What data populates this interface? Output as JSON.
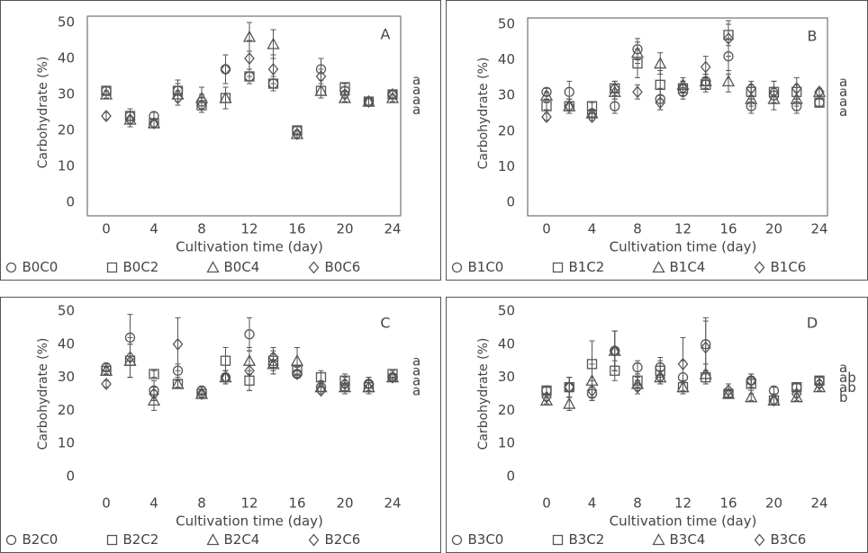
{
  "chart_data": [
    {
      "type": "scatter",
      "panel_label": "A",
      "ylabel": "Carbohydrate (%)",
      "xlabel": "Cultivation time (day)",
      "x": [
        0,
        2,
        4,
        6,
        8,
        10,
        12,
        14,
        16,
        18,
        20,
        22,
        24
      ],
      "xlim": [
        0,
        24
      ],
      "xticks": [
        0,
        4,
        8,
        12,
        16,
        20,
        24
      ],
      "ylim": [
        0,
        50
      ],
      "yticks": [
        0,
        10,
        20,
        30,
        40,
        50
      ],
      "frame": true,
      "sig_letters": [
        "a",
        "a",
        "a",
        "a"
      ],
      "series": [
        {
          "name": "B0C0",
          "marker": "circle",
          "color": "#555",
          "values": [
            31,
            24,
            24,
            31,
            28,
            37,
            35,
            33,
            20,
            37,
            31,
            28,
            30
          ],
          "errors": [
            1,
            2,
            1,
            3,
            2,
            4,
            2,
            2,
            1,
            3,
            1,
            1,
            1
          ]
        },
        {
          "name": "B0C2",
          "marker": "square",
          "color": "#555",
          "values": [
            31,
            24,
            22,
            31,
            27,
            29,
            35,
            33,
            20,
            31,
            32,
            28,
            30
          ],
          "errors": [
            1,
            2,
            1,
            3,
            2,
            3,
            2,
            2,
            1,
            2,
            1,
            1,
            1
          ]
        },
        {
          "name": "B0C4",
          "marker": "triangle",
          "color": "#555",
          "values": [
            30,
            23,
            22,
            30,
            29,
            29,
            46,
            44,
            19,
            31,
            29,
            28,
            29
          ],
          "errors": [
            1,
            2,
            1,
            3,
            3,
            3,
            4,
            4,
            1,
            2,
            1,
            1,
            1
          ]
        },
        {
          "name": "B0C6",
          "marker": "diamond",
          "color": "#555",
          "values": [
            24,
            23,
            22,
            29,
            27,
            37,
            40,
            37,
            19,
            35,
            30,
            28,
            30
          ],
          "errors": [
            1,
            2,
            1,
            2,
            2,
            4,
            5,
            4,
            1,
            2,
            1,
            1,
            1
          ]
        }
      ]
    },
    {
      "type": "scatter",
      "panel_label": "B",
      "ylabel": "Carbohydrate (%)",
      "xlabel": "Cultivation time (day)",
      "x": [
        0,
        2,
        4,
        6,
        8,
        10,
        12,
        14,
        16,
        18,
        20,
        22,
        24
      ],
      "xlim": [
        0,
        24
      ],
      "xticks": [
        0,
        4,
        8,
        12,
        16,
        20,
        24
      ],
      "ylim": [
        0,
        50
      ],
      "yticks": [
        0,
        10,
        20,
        30,
        40,
        50
      ],
      "frame": true,
      "sig_letters": [
        "a",
        "a",
        "a",
        "a"
      ],
      "series": [
        {
          "name": "B1C0",
          "marker": "circle",
          "color": "#555",
          "values": [
            31,
            31,
            25,
            27,
            43,
            29,
            31,
            34,
            41,
            27,
            30,
            27,
            28
          ],
          "errors": [
            1,
            3,
            1,
            2,
            3,
            3,
            2,
            2,
            5,
            2,
            2,
            2,
            1
          ]
        },
        {
          "name": "B1C2",
          "marker": "square",
          "color": "#555",
          "values": [
            27,
            27,
            27,
            32,
            39,
            33,
            32,
            33,
            47,
            31,
            31,
            31,
            28
          ],
          "errors": [
            1,
            2,
            1,
            2,
            4,
            4,
            2,
            2,
            3,
            2,
            3,
            2,
            1
          ]
        },
        {
          "name": "B1C4",
          "marker": "triangle",
          "color": "#555",
          "values": [
            30,
            27,
            25,
            31,
            42,
            39,
            33,
            34,
            34,
            29,
            29,
            29,
            31
          ],
          "errors": [
            1,
            2,
            1,
            2,
            3,
            3,
            2,
            2,
            3,
            2,
            3,
            2,
            1
          ]
        },
        {
          "name": "B1C6",
          "marker": "diamond",
          "color": "#555",
          "values": [
            24,
            27,
            24,
            32,
            31,
            28,
            32,
            38,
            46,
            32,
            31,
            32,
            31
          ],
          "errors": [
            1,
            2,
            1,
            2,
            2,
            2,
            2,
            3,
            5,
            2,
            3,
            3,
            1
          ]
        }
      ]
    },
    {
      "type": "scatter",
      "panel_label": "C",
      "ylabel": "Carbohydrate (%)",
      "xlabel": "Cultivation time (day)",
      "x": [
        0,
        2,
        4,
        6,
        8,
        10,
        12,
        14,
        16,
        18,
        20,
        22,
        24
      ],
      "xlim": [
        0,
        24
      ],
      "xticks": [
        0,
        4,
        8,
        12,
        16,
        20,
        24
      ],
      "ylim": [
        0,
        50
      ],
      "yticks": [
        0,
        10,
        20,
        30,
        40,
        50
      ],
      "frame": false,
      "sig_letters": [
        "a",
        "a",
        "a",
        "a"
      ],
      "series": [
        {
          "name": "B2C0",
          "marker": "circle",
          "color": "#555",
          "values": [
            33,
            42,
            26,
            32,
            26,
            30,
            43,
            34,
            31,
            27,
            27,
            28,
            30
          ],
          "errors": [
            1,
            7,
            3,
            2,
            1,
            2,
            5,
            3,
            1,
            2,
            2,
            2,
            1
          ]
        },
        {
          "name": "B2C2",
          "marker": "square",
          "color": "#555",
          "values": [
            32,
            35,
            31,
            28,
            25,
            35,
            29,
            35,
            32,
            30,
            29,
            27,
            31
          ],
          "errors": [
            1,
            5,
            1,
            1,
            1,
            4,
            3,
            3,
            1,
            2,
            2,
            2,
            1
          ]
        },
        {
          "name": "B2C4",
          "marker": "triangle",
          "color": "#555",
          "values": [
            32,
            35,
            23,
            28,
            25,
            30,
            35,
            34,
            35,
            27,
            27,
            27,
            30
          ],
          "errors": [
            1,
            5,
            3,
            1,
            1,
            2,
            4,
            3,
            4,
            2,
            2,
            2,
            1
          ]
        },
        {
          "name": "B2C6",
          "marker": "diamond",
          "color": "#555",
          "values": [
            28,
            36,
            25,
            40,
            25,
            30,
            32,
            36,
            31,
            26,
            28,
            28,
            30
          ],
          "errors": [
            1,
            6,
            2,
            8,
            1,
            2,
            6,
            3,
            1,
            1,
            2,
            2,
            1
          ]
        }
      ]
    },
    {
      "type": "scatter",
      "panel_label": "D",
      "ylabel": "Carbohydrate (%)",
      "xlabel": "Cultivation time (day)",
      "x": [
        0,
        2,
        4,
        6,
        8,
        10,
        12,
        14,
        16,
        18,
        20,
        22,
        24
      ],
      "xlim": [
        0,
        24
      ],
      "xticks": [
        0,
        4,
        8,
        12,
        16,
        20,
        24
      ],
      "ylim": [
        0,
        50
      ],
      "yticks": [
        0,
        10,
        20,
        30,
        40,
        50
      ],
      "frame": false,
      "sig_letters": [
        "a",
        "ab",
        "ab",
        "b"
      ],
      "series": [
        {
          "name": "B3C0",
          "marker": "circle",
          "color": "#555",
          "values": [
            26,
            27,
            25,
            38,
            33,
            33,
            30,
            40,
            25,
            29,
            26,
            27,
            29
          ],
          "errors": [
            1,
            3,
            2,
            6,
            2,
            3,
            5,
            8,
            1,
            2,
            1,
            1,
            1
          ]
        },
        {
          "name": "B3C2",
          "marker": "square",
          "color": "#555",
          "values": [
            26,
            27,
            34,
            32,
            29,
            32,
            27,
            30,
            25,
            28,
            23,
            27,
            29
          ],
          "errors": [
            1,
            3,
            7,
            3,
            2,
            3,
            2,
            2,
            1,
            2,
            1,
            1,
            1
          ]
        },
        {
          "name": "B3C4",
          "marker": "triangle",
          "color": "#555",
          "values": [
            23,
            22,
            29,
            38,
            28,
            30,
            27,
            31,
            25,
            24,
            23,
            24,
            27
          ],
          "errors": [
            1,
            2,
            5,
            6,
            2,
            2,
            2,
            3,
            1,
            1,
            1,
            1,
            1
          ]
        },
        {
          "name": "B3C6",
          "marker": "diamond",
          "color": "#555",
          "values": [
            24,
            27,
            26,
            38,
            27,
            30,
            34,
            39,
            26,
            29,
            23,
            25,
            28
          ],
          "errors": [
            1,
            3,
            3,
            6,
            2,
            2,
            8,
            8,
            2,
            2,
            1,
            1,
            1
          ]
        }
      ]
    }
  ]
}
